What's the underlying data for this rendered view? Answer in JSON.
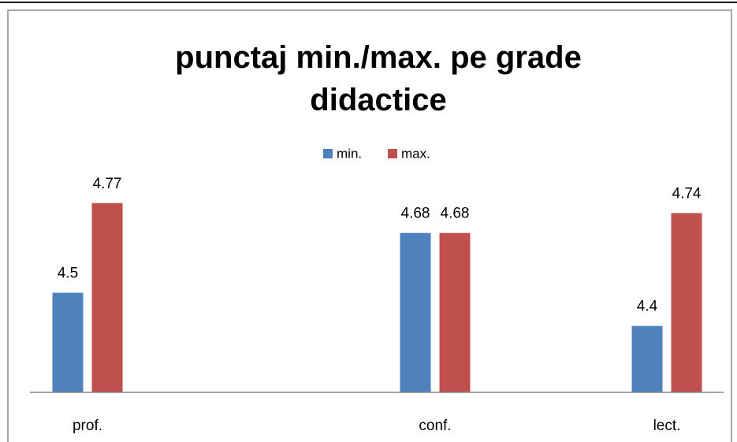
{
  "chart_data": {
    "type": "bar",
    "title": "punctaj min./max. pe grade didactice",
    "categories": [
      "prof.",
      "conf.",
      "lect."
    ],
    "series": [
      {
        "name": "min.",
        "color": "#4f81bd",
        "values": [
          4.5,
          4.68,
          4.4
        ]
      },
      {
        "name": "max.",
        "color": "#c0504d",
        "values": [
          4.77,
          4.68,
          4.74
        ]
      }
    ],
    "ylim": [
      4.2,
      4.9
    ]
  }
}
